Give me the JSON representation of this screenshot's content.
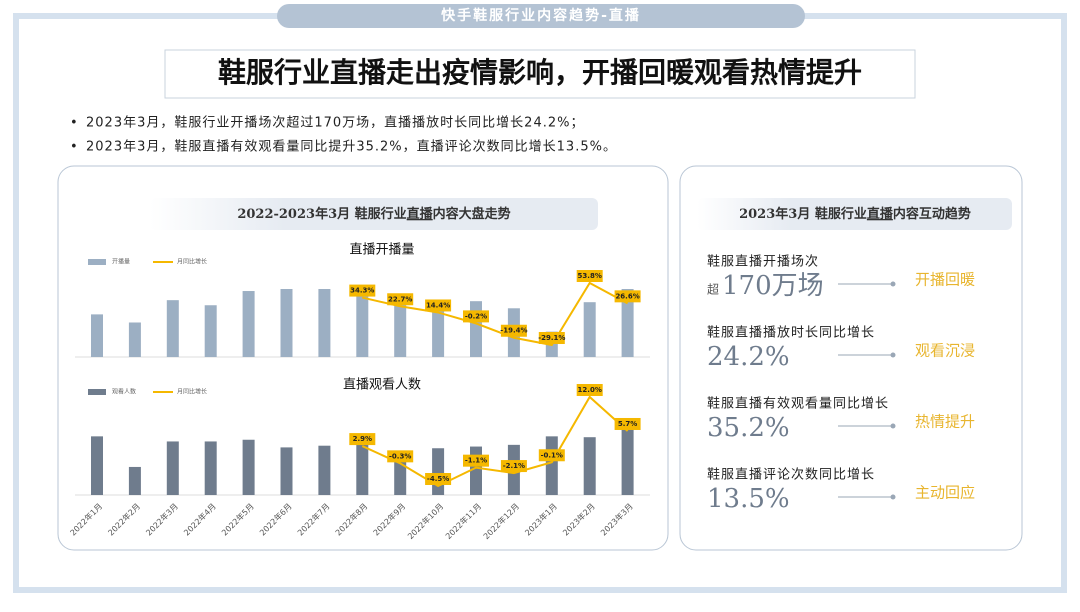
{
  "header": {
    "tag": "快手鞋服行业内容趋势-直播",
    "title": "鞋服行业直播走出疫情影响，开播回暖观看热情提升"
  },
  "bullets": [
    "2023年3月，鞋服行业开播场次超过170万场，直播播放时长同比增长24.2%；",
    "2023年3月，鞋服直播有效观看量同比提升35.2%，直播评论次数同比增长13.5%。"
  ],
  "left_panel": {
    "title": [
      "2022-2023年3月 鞋服行业",
      "直播",
      "内容大盘走势"
    ]
  },
  "chart_data": [
    {
      "type": "bar_line",
      "title": "直播开播量",
      "series": [
        {
          "name": "开播量",
          "kind": "bar",
          "color": "#9cafc3",
          "values": [
            42,
            34,
            56,
            51,
            65,
            67,
            67,
            67,
            62,
            52,
            55,
            48,
            25,
            54,
            67
          ]
        },
        {
          "name": "月同比增长",
          "kind": "line",
          "color": "#f5b800",
          "values": [
            null,
            null,
            null,
            null,
            null,
            null,
            null,
            34.3,
            22.7,
            14.4,
            -0.2,
            -19.4,
            -29.1,
            53.8,
            26.6
          ],
          "value_labels": [
            null,
            null,
            null,
            null,
            null,
            null,
            null,
            "34.3%",
            "22.7%",
            "14.4%",
            "-0.2%",
            "-19.4%",
            "-29.1%",
            "53.8%",
            "26.6%"
          ]
        }
      ]
    },
    {
      "type": "bar_line",
      "title": "直播观看人数",
      "categories": [
        "2022年1月",
        "2022年2月",
        "2022年3月",
        "2022年4月",
        "2022年5月",
        "2022年6月",
        "2022年7月",
        "2022年8月",
        "2022年9月",
        "2022年10月",
        "2022年11月",
        "2022年12月",
        "2023年1月",
        "2023年2月",
        "2023年3月"
      ],
      "series": [
        {
          "name": "观看人数",
          "kind": "bar",
          "color": "#6f7c8d",
          "values": [
            69,
            33,
            63,
            63,
            65,
            56,
            58,
            65,
            50,
            55,
            57,
            59,
            69,
            68,
            80
          ]
        },
        {
          "name": "月同比增长",
          "kind": "line",
          "color": "#f5b800",
          "values": [
            null,
            null,
            null,
            null,
            null,
            null,
            null,
            2.9,
            -0.3,
            -4.5,
            -1.1,
            -2.1,
            -0.1,
            12.0,
            5.7
          ],
          "value_labels": [
            null,
            null,
            null,
            null,
            null,
            null,
            null,
            "2.9%",
            "-0.3%",
            "-4.5%",
            "-1.1%",
            "-2.1%",
            "-0.1%",
            "12.0%",
            "5.7%"
          ]
        }
      ]
    }
  ],
  "right_panel": {
    "title": [
      "2023年3月 鞋服行业",
      "直播",
      "内容互动趋势"
    ],
    "items": [
      {
        "label": "鞋服直播开播场次",
        "prefix": "超",
        "value": "170万场",
        "tag": "开播回暖"
      },
      {
        "label": "鞋服直播播放时长同比增长",
        "value": "24.2%",
        "tag": "观看沉浸"
      },
      {
        "label": "鞋服直播有效观看量同比增长",
        "value": "35.2%",
        "tag": "热情提升"
      },
      {
        "label": "鞋服直播评论次数同比增长",
        "value": "13.5%",
        "tag": "主动回应"
      }
    ]
  }
}
